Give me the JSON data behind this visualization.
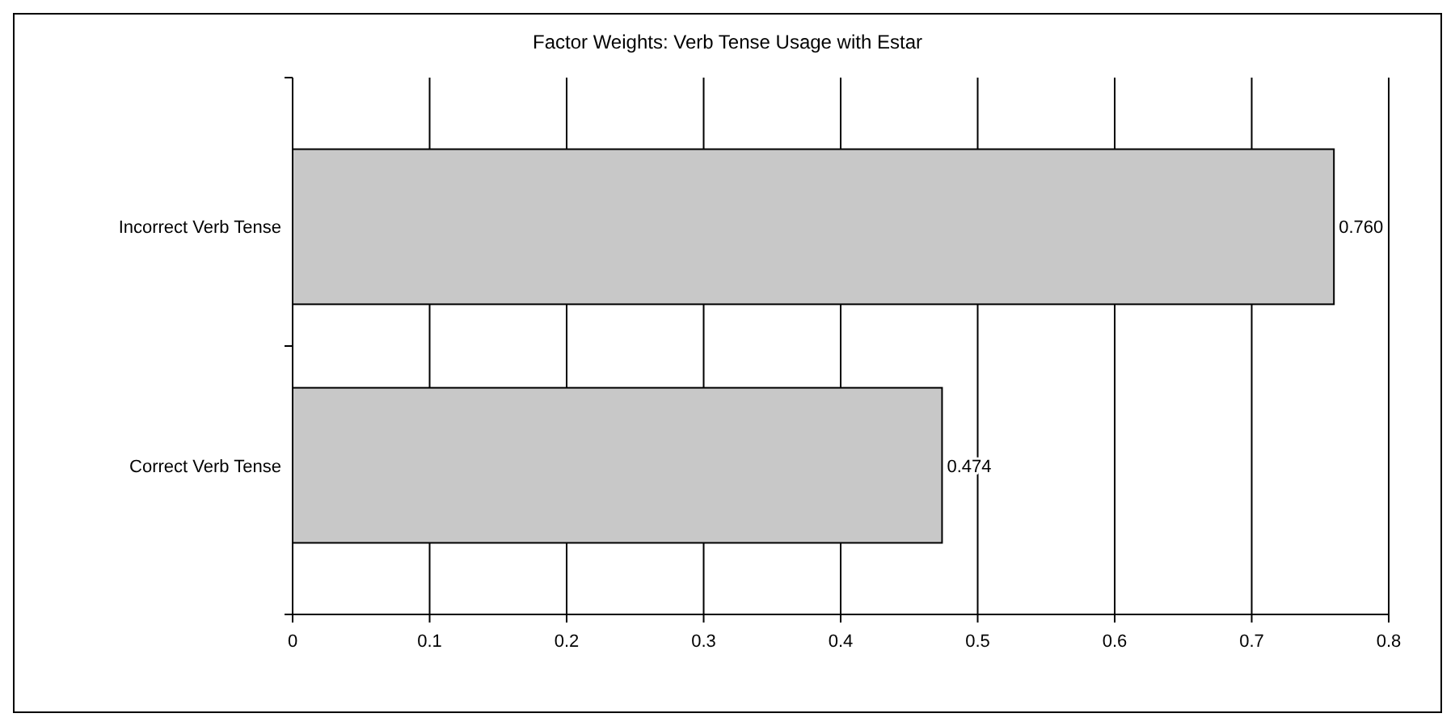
{
  "chart_data": {
    "type": "bar",
    "orientation": "horizontal",
    "title": "Factor Weights: Verb Tense Usage with Estar",
    "categories": [
      "Incorrect Verb Tense",
      "Correct Verb Tense"
    ],
    "values": [
      0.76,
      0.474
    ],
    "value_labels": [
      "0.760",
      "0.474"
    ],
    "color": "#c8c8c8",
    "xlim": [
      0,
      0.8
    ],
    "xticks": [
      0,
      0.1,
      0.2,
      0.3,
      0.4,
      0.5,
      0.6,
      0.7,
      0.8
    ],
    "grid": "x"
  }
}
